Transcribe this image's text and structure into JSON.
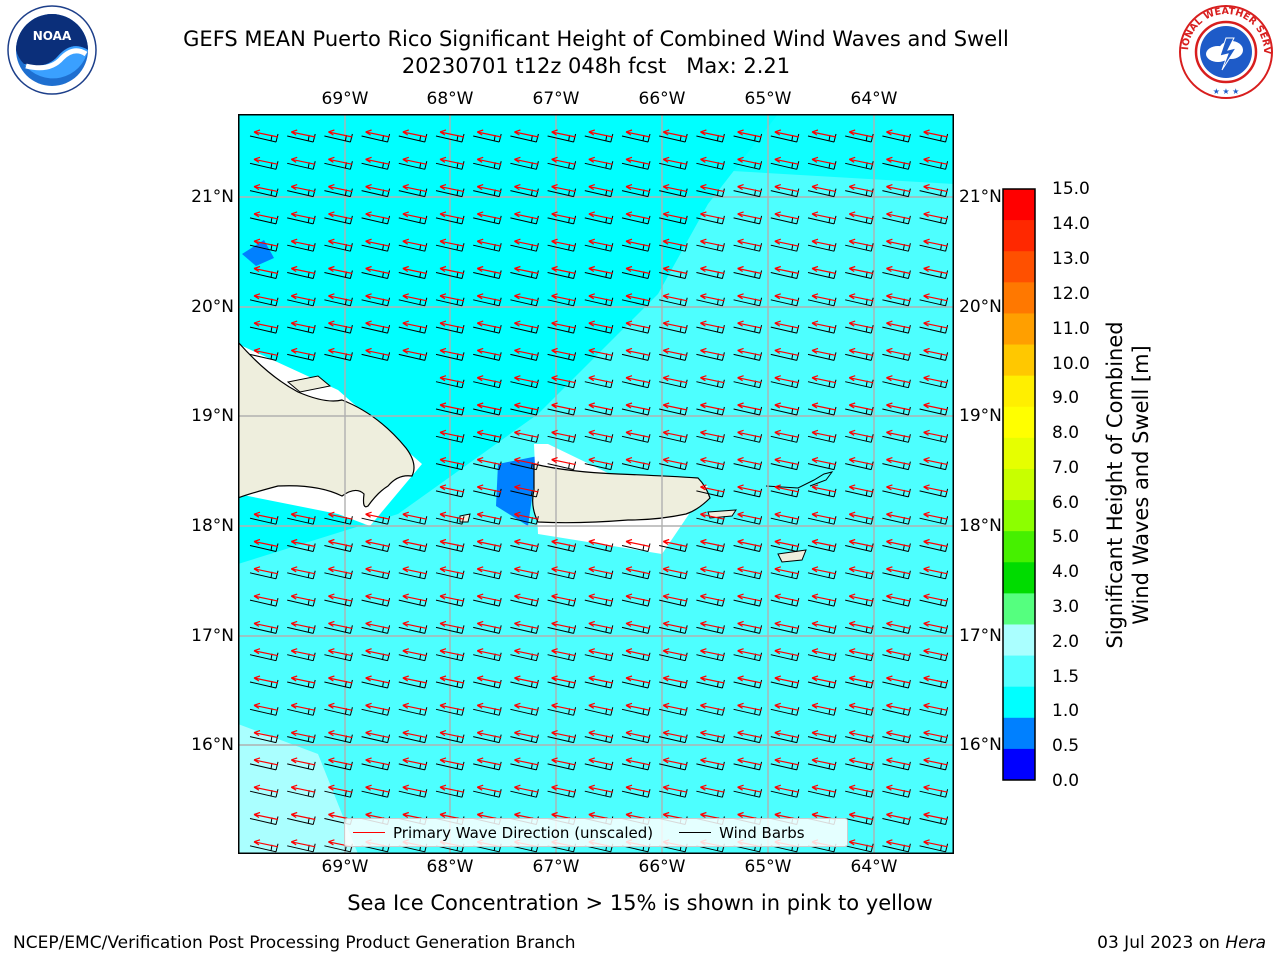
{
  "title_line1": "GEFS MEAN Puerto Rico Significant Height of Combined Wind Waves and Swell",
  "title_line2": "20230701 t12z 048h fcst   Max: 2.21",
  "logos": {
    "left_icon": "noaa-logo",
    "left_text": "NOAA",
    "left_ring_text": "NATIONAL OCEANIC AND ATMOSPHERIC ADMINISTRATION · U.S. DEPARTMENT OF COMMERCE",
    "right_icon": "nws-logo",
    "right_ring_text": "NATIONAL WEATHER SERVICE"
  },
  "map": {
    "lon_labels": [
      "69°W",
      "68°W",
      "67°W",
      "66°W",
      "65°W",
      "64°W"
    ],
    "lat_labels": [
      "21°N",
      "20°N",
      "19°N",
      "18°N",
      "17°N",
      "16°N"
    ],
    "colors": {
      "ocean_main": "#00ffff",
      "ocean_high": "#55ffff",
      "ocean_low": "#0080ff",
      "land": "#eeeedd",
      "gridline": "#b0b0b0",
      "wave_arrow": "#ff0000",
      "wind_barb": "#000000"
    }
  },
  "colorbar": {
    "label_line1": "Significant Height of Combined",
    "label_line2": "Wind Waves and Swell [m]",
    "ticks": [
      "15.0",
      "14.0",
      "13.0",
      "12.0",
      "11.0",
      "10.0",
      "9.0",
      "8.0",
      "7.0",
      "6.0",
      "5.0",
      "4.0",
      "3.0",
      "2.0",
      "1.5",
      "1.0",
      "0.5",
      "0.0"
    ],
    "colors_top_to_bottom": [
      "#ff0000",
      "#ff2800",
      "#ff5000",
      "#ff7800",
      "#ff9f00",
      "#ffc800",
      "#ffef00",
      "#ffff00",
      "#e6ff00",
      "#c8ff00",
      "#8cff00",
      "#46f000",
      "#00dc00",
      "#55ff7f",
      "#aaffff",
      "#55ffff",
      "#00ffff",
      "#0080ff",
      "#0000ff"
    ]
  },
  "legend": {
    "wave_label": "Primary Wave Direction (unscaled)",
    "wind_label": "Wind Barbs"
  },
  "caption": "Sea Ice Concentration > 15% is shown in pink to yellow",
  "footer": {
    "left": "NCEP/EMC/Verification Post Processing Product Generation Branch",
    "right_date": "03 Jul 2023 on ",
    "right_machine": "Hera"
  }
}
